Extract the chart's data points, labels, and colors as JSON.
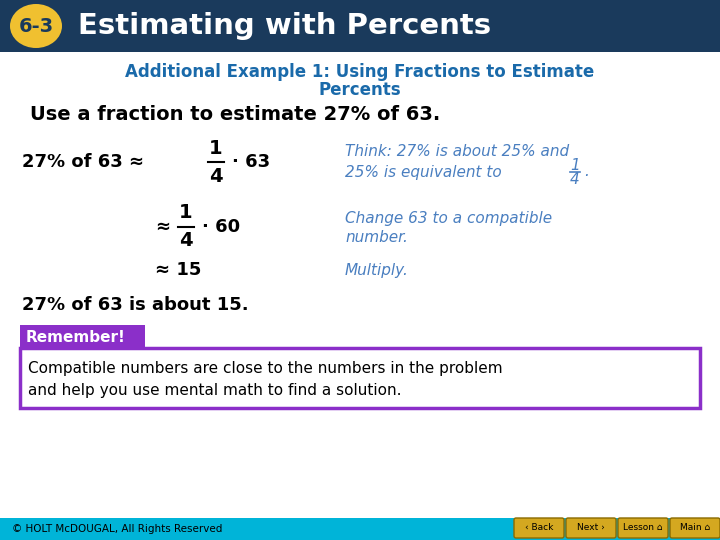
{
  "header_bg": "#1a3a5c",
  "header_label_bg": "#f0c030",
  "header_label_text": "6-3",
  "header_title": "Estimating with Percents",
  "header_title_color": "#ffffff",
  "header_label_color": "#1a3a5c",
  "slide_bg": "#ffffff",
  "subtitle_text_line1": "Additional Example 1: Using Fractions to Estimate",
  "subtitle_text_line2": "Percents",
  "subtitle_color": "#1a6aaa",
  "instruction": "Use a fraction to estimate 27% of 63.",
  "instruction_color": "#000000",
  "row1_left": "27% of 63 ≈",
  "row1_frac_num": "1",
  "row1_frac_den": "4",
  "row1_rest": "· 63",
  "row1_think": "Think: 27% is about 25% and",
  "row1_think2": "25% is equivalent to",
  "row1_think_frac_num": "1",
  "row1_think_frac_den": "4",
  "row1_think_dot": ".",
  "row2_left": "≈",
  "row2_frac_num": "1",
  "row2_frac_den": "4",
  "row2_rest": "· 60",
  "row2_think": "Change 63 to a compatible",
  "row2_think2": "number.",
  "row3_left": "≈ 15",
  "row3_think": "Multiply.",
  "conclusion": "27% of 63 is about 15.",
  "remember_bg": "#8b2fc9",
  "remember_title": "Remember!",
  "remember_title_color": "#ffffff",
  "remember_border": "#8b2fc9",
  "remember_text_line1": "Compatible numbers are close to the numbers in the problem",
  "remember_text_line2": "and help you use mental math to find a solution.",
  "remember_text_color": "#000000",
  "footer_bg": "#00b4d8",
  "footer_text": "© HOLT McDOUGAL, All Rights Reserved",
  "footer_text_color": "#000000",
  "italic_color": "#4a7fc0",
  "math_color": "#000000",
  "btn_bg": "#d4a820",
  "btn_color": "#000000"
}
